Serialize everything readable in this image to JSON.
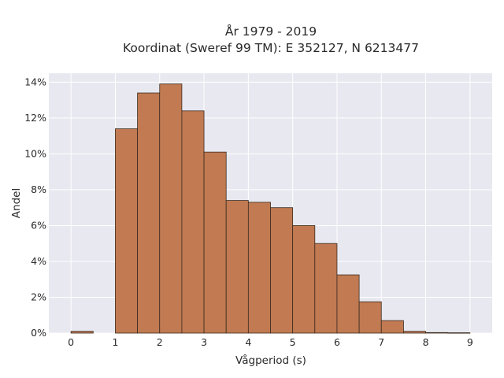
{
  "chart_data": {
    "type": "bar",
    "title": "År 1979 - 2019",
    "subtitle": "Koordinat (Sweref 99 TM): E 352127, N 6213477",
    "xlabel": "Vågperiod (s)",
    "ylabel": "Andel",
    "xlim": [
      -0.5,
      9.5
    ],
    "ylim": [
      0,
      14.5
    ],
    "x_ticks": [
      0,
      1,
      2,
      3,
      4,
      5,
      6,
      7,
      8,
      9
    ],
    "y_ticks": [
      0,
      2,
      4,
      6,
      8,
      10,
      12,
      14
    ],
    "y_tick_labels": [
      "0%",
      "2%",
      "4%",
      "6%",
      "8%",
      "10%",
      "12%",
      "14%"
    ],
    "bin_width": 0.5,
    "bins": [
      {
        "start": 0.0,
        "value": 0.1
      },
      {
        "start": 0.5,
        "value": 0.0
      },
      {
        "start": 1.0,
        "value": 11.4
      },
      {
        "start": 1.5,
        "value": 13.4
      },
      {
        "start": 2.0,
        "value": 13.9
      },
      {
        "start": 2.5,
        "value": 12.4
      },
      {
        "start": 3.0,
        "value": 10.1
      },
      {
        "start": 3.5,
        "value": 7.4
      },
      {
        "start": 4.0,
        "value": 7.3
      },
      {
        "start": 4.5,
        "value": 7.0
      },
      {
        "start": 5.0,
        "value": 6.0
      },
      {
        "start": 5.5,
        "value": 5.0
      },
      {
        "start": 6.0,
        "value": 3.25
      },
      {
        "start": 6.5,
        "value": 1.75
      },
      {
        "start": 7.0,
        "value": 0.7
      },
      {
        "start": 7.5,
        "value": 0.1
      },
      {
        "start": 8.0,
        "value": 0.03
      },
      {
        "start": 8.5,
        "value": 0.02
      }
    ],
    "grid": true,
    "colors": {
      "bar_fill": "#c17a52",
      "bar_stroke": "#3a2a1e",
      "plot_bg": "#e8e8f0",
      "grid": "#ffffff"
    }
  }
}
